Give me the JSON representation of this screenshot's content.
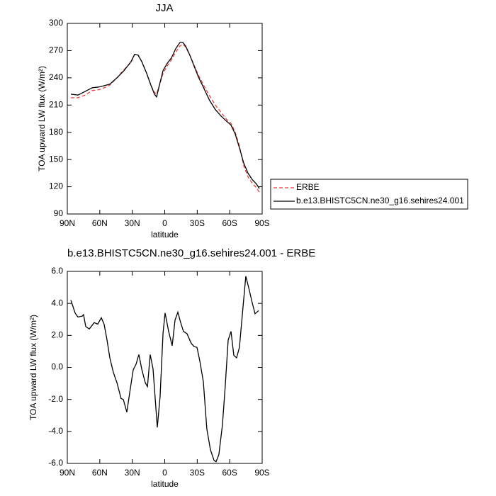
{
  "chart_data": [
    {
      "type": "line",
      "title": "JJA",
      "ylabel": "TOA upward LW flux (W/m²)",
      "xlabel": "latitude",
      "x": [
        86.7,
        80.2,
        73.6,
        67.1,
        60.5,
        54,
        50.7,
        44.2,
        37.6,
        31.1,
        27.8,
        24.6,
        21.3,
        16.7,
        12.8,
        9.5,
        7.5,
        4.9,
        1.6,
        -2.3,
        -6.2,
        -10.1,
        -14,
        -16.7,
        -19.3,
        -23.2,
        -27.1,
        -31.1,
        -36.3,
        -41.5,
        -46.8,
        -52,
        -57.3,
        -61.2,
        -65.1,
        -69,
        -73,
        -76.9,
        -80.8,
        -84.7,
        -87.4
      ],
      "series": [
        {
          "name": "ERBE",
          "color": "#e8413a",
          "dash": true,
          "values": [
            218,
            218,
            221,
            226,
            227,
            230,
            232,
            240,
            249,
            257,
            266,
            265,
            258,
            245,
            232,
            224,
            222,
            232,
            245,
            253,
            260,
            268,
            275,
            277,
            274,
            265,
            254,
            243,
            231,
            220,
            210,
            202,
            194,
            190,
            180,
            165,
            143,
            131,
            124,
            119,
            114
          ]
        },
        {
          "name": "b.e13.BHISTC5CN.ne30_g16.sehires24.001",
          "color": "#000000",
          "dash": false,
          "values": [
            222,
            221,
            225,
            229,
            230,
            232,
            233,
            240,
            248,
            258,
            266,
            265,
            258,
            245,
            232,
            222,
            219,
            232,
            248,
            256,
            262,
            272,
            279,
            279,
            275,
            265,
            253,
            241,
            228,
            215,
            205,
            198,
            192,
            188,
            178,
            163,
            146,
            135,
            128,
            123,
            118
          ]
        }
      ],
      "xlim": [
        90,
        -90
      ],
      "xticks": [
        {
          "value": 90,
          "label": "90N"
        },
        {
          "value": 60,
          "label": "60N"
        },
        {
          "value": 30,
          "label": "30N"
        },
        0,
        {
          "value": -30,
          "label": "30S"
        },
        {
          "value": -60,
          "label": "60S"
        },
        {
          "value": -90,
          "label": "90S"
        }
      ],
      "ylim": [
        90,
        300
      ],
      "yticks": [
        90,
        120,
        150,
        180,
        210,
        240,
        270,
        300
      ],
      "legend": "right"
    },
    {
      "type": "line",
      "title": "b.e13.BHISTC5CN.ne30_g16.sehires24.001 - ERBE",
      "ylabel": "TOA upward LW flux (W/m²)",
      "xlabel": "latitude",
      "x": [
        86.7,
        82.8,
        80.2,
        76.3,
        75,
        73,
        69.7,
        65.1,
        61.9,
        58.6,
        56,
        53.4,
        50.7,
        47.5,
        44.2,
        40.3,
        38.3,
        35,
        32.4,
        29.1,
        26.5,
        23.9,
        21.3,
        18,
        16,
        13.4,
        10.8,
        6.9,
        4.3,
        1.6,
        -0.3,
        -3.6,
        -6.9,
        -9.5,
        -12.1,
        -14.7,
        -17.3,
        -20.6,
        -24.5,
        -27.1,
        -29.8,
        -32.4,
        -35.7,
        -38.9,
        -42.2,
        -45.5,
        -47.4,
        -50,
        -53.3,
        -55.9,
        -58.6,
        -61.2,
        -63.8,
        -66.4,
        -69,
        -71.6,
        -74.9,
        -77.5,
        -80.8,
        -83.4,
        -86.7
      ],
      "series": [
        {
          "name": null,
          "color": "#000000",
          "dash": false,
          "values": [
            4.2,
            3.4,
            3.15,
            3.2,
            3.3,
            2.55,
            2.4,
            2.8,
            2.7,
            3.1,
            2.7,
            1.75,
            0.6,
            -0.3,
            -0.95,
            -1.95,
            -2.0,
            -2.8,
            -1.6,
            -0.15,
            0.2,
            0.8,
            -0.1,
            -0.95,
            -1.2,
            0.8,
            -0.1,
            -3.75,
            -1.85,
            2.15,
            3.4,
            2.25,
            1.35,
            2.95,
            3.45,
            2.8,
            2.25,
            2.1,
            1.5,
            1.3,
            1.25,
            0.4,
            -0.9,
            -3.85,
            -5.15,
            -5.8,
            -5.9,
            -5.45,
            -3.6,
            -1.15,
            1.7,
            2.25,
            0.75,
            0.6,
            1.25,
            3.25,
            5.7,
            5.0,
            4.05,
            3.35,
            3.55
          ]
        }
      ],
      "xlim": [
        90,
        -90
      ],
      "xticks": [
        {
          "value": 90,
          "label": "90N"
        },
        {
          "value": 60,
          "label": "60N"
        },
        {
          "value": 30,
          "label": "30N"
        },
        0,
        {
          "value": -30,
          "label": "30S"
        },
        {
          "value": -60,
          "label": "60S"
        },
        {
          "value": -90,
          "label": "90S"
        }
      ],
      "ylim": [
        -6,
        6
      ],
      "yticks": [
        {
          "value": -6,
          "label": "-6.0"
        },
        {
          "value": -4,
          "label": "-4.0"
        },
        {
          "value": -2,
          "label": "-2.0"
        },
        {
          "value": 0,
          "label": "0.0"
        },
        {
          "value": 2,
          "label": "2.0"
        },
        {
          "value": 4,
          "label": "4.0"
        },
        {
          "value": 6,
          "label": "6.0"
        }
      ]
    }
  ]
}
